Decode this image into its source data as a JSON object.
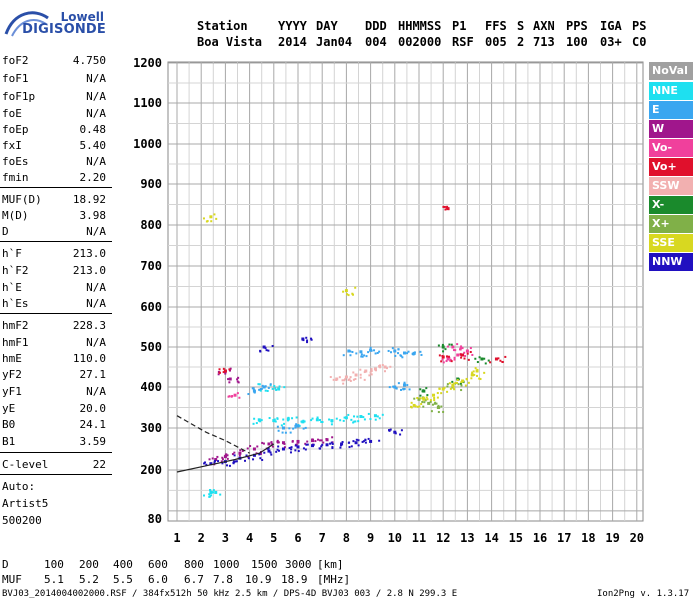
{
  "logo": {
    "line1": "Lowell",
    "line2": "DIGISONDE"
  },
  "header": {
    "labels": [
      "Station",
      "YYYY",
      "DAY",
      "DDD",
      "HHMMSS",
      "P1",
      "FFS",
      "S",
      "AXN",
      "PPS",
      "IGA",
      "PS"
    ],
    "values": [
      "Boa Vista",
      "2014",
      "Jan04",
      "004",
      "002000",
      "RSF",
      "005",
      "2",
      "713",
      "100",
      "03+",
      "C0"
    ]
  },
  "params": [
    {
      "name": "foF2",
      "value": "4.750"
    },
    {
      "name": "foF1",
      "value": "N/A"
    },
    {
      "name": "foF1p",
      "value": "N/A"
    },
    {
      "name": "foE",
      "value": "N/A"
    },
    {
      "name": "foEp",
      "value": "0.48"
    },
    {
      "name": "fxI",
      "value": "5.40"
    },
    {
      "name": "foEs",
      "value": "N/A"
    },
    {
      "name": "fmin",
      "value": "2.20"
    },
    {
      "name": "MUF(D)",
      "value": "18.92"
    },
    {
      "name": "M(D)",
      "value": "3.98"
    },
    {
      "name": "D",
      "value": "N/A"
    },
    {
      "name": "h`F",
      "value": "213.0"
    },
    {
      "name": "h`F2",
      "value": "213.0"
    },
    {
      "name": "h`E",
      "value": "N/A"
    },
    {
      "name": "h`Es",
      "value": "N/A"
    },
    {
      "name": "hmF2",
      "value": "228.3"
    },
    {
      "name": "hmF1",
      "value": "N/A"
    },
    {
      "name": "hmE",
      "value": "110.0"
    },
    {
      "name": "yF2",
      "value": "27.1"
    },
    {
      "name": "yF1",
      "value": "N/A"
    },
    {
      "name": "yE",
      "value": "20.0"
    },
    {
      "name": "B0",
      "value": "24.1"
    },
    {
      "name": "B1",
      "value": "3.59"
    },
    {
      "name": "C-level",
      "value": "22"
    }
  ],
  "auto": {
    "label": "Auto:",
    "artist": "Artist5",
    "code": "500200"
  },
  "legend": [
    {
      "label": "NoVal",
      "color": "#a0a0a0"
    },
    {
      "label": "NNE",
      "color": "#1ee0f0"
    },
    {
      "label": "E",
      "color": "#3aa6f0"
    },
    {
      "label": "W",
      "color": "#a0168c"
    },
    {
      "label": "Vo-",
      "color": "#f0409c"
    },
    {
      "label": "Vo+",
      "color": "#e0102c"
    },
    {
      "label": "SSW",
      "color": "#f2b0b0"
    },
    {
      "label": "X-",
      "color": "#1a8a2c"
    },
    {
      "label": "X+",
      "color": "#80b048"
    },
    {
      "label": "SSE",
      "color": "#d8d820"
    },
    {
      "label": "NNW",
      "color": "#2010c0"
    }
  ],
  "bottom": {
    "d_label": "D",
    "d_values": [
      "100",
      "200",
      "400",
      "600",
      "800",
      "1000",
      "1500",
      "3000",
      "[km]"
    ],
    "muf_label": "MUF",
    "muf_values": [
      "5.1",
      "5.2",
      "5.5",
      "6.0",
      "6.7",
      "7.8",
      "10.9",
      "18.9",
      "[MHz]"
    ]
  },
  "footer": {
    "left": "BVJ03_2014004002000.RSF / 384fx512h 50 kHz 2.5 km / DPS-4D BVJ03 003 / 2.8 N 299.3 E",
    "right": "Ion2Png v. 1.3.17"
  },
  "chart_data": {
    "type": "scatter",
    "title": "",
    "xlabel": "",
    "ylabel": "",
    "x_ticks": [
      1,
      2,
      3,
      4,
      5,
      6,
      7,
      8,
      9,
      10,
      11,
      12,
      13,
      14,
      15,
      16,
      17,
      18,
      19,
      20
    ],
    "y_ticks": [
      80,
      200,
      300,
      400,
      500,
      600,
      700,
      800,
      900,
      1000,
      1100,
      1200
    ],
    "xlim": [
      1,
      20
    ],
    "ylim": [
      80,
      1200
    ],
    "grid": true,
    "legend_position": "right",
    "series": [
      {
        "name": "NNE",
        "points": [
          [
            4.4,
            320
          ],
          [
            5.0,
            318
          ],
          [
            5.6,
            322
          ],
          [
            6.2,
            315
          ],
          [
            6.8,
            320
          ],
          [
            7.4,
            318
          ],
          [
            8.0,
            325
          ],
          [
            8.6,
            328
          ],
          [
            9.2,
            330
          ],
          [
            4.6,
            400
          ],
          [
            5.2,
            395
          ],
          [
            2.4,
            145
          ],
          [
            2.6,
            145
          ]
        ]
      },
      {
        "name": "E",
        "points": [
          [
            8.1,
            490
          ],
          [
            8.6,
            488
          ],
          [
            9.0,
            492
          ],
          [
            10.0,
            490
          ],
          [
            10.4,
            485
          ],
          [
            10.8,
            484
          ],
          [
            4.2,
            390
          ],
          [
            4.6,
            400
          ],
          [
            5.4,
            300
          ],
          [
            6.0,
            305
          ],
          [
            10.0,
            400
          ],
          [
            10.4,
            405
          ]
        ]
      },
      {
        "name": "W",
        "points": [
          [
            2.6,
            225
          ],
          [
            3.0,
            232
          ],
          [
            3.6,
            240
          ],
          [
            4.2,
            250
          ],
          [
            4.8,
            262
          ],
          [
            5.4,
            265
          ],
          [
            6.0,
            268
          ],
          [
            6.6,
            270
          ],
          [
            7.2,
            272
          ],
          [
            3.0,
            440
          ],
          [
            3.2,
            420
          ]
        ]
      },
      {
        "name": "Vo-",
        "points": [
          [
            12.2,
            470
          ],
          [
            12.6,
            480
          ],
          [
            13.0,
            490
          ],
          [
            3.4,
            380
          ],
          [
            12.4,
            500
          ]
        ]
      },
      {
        "name": "Vo+",
        "points": [
          [
            12.0,
            475
          ],
          [
            12.8,
            480
          ],
          [
            14.2,
            470
          ],
          [
            12.2,
            840
          ],
          [
            3.0,
            440
          ]
        ]
      },
      {
        "name": "SSW",
        "points": [
          [
            7.6,
            420
          ],
          [
            8.0,
            425
          ],
          [
            8.4,
            430
          ],
          [
            8.8,
            440
          ],
          [
            9.2,
            445
          ],
          [
            9.6,
            450
          ]
        ]
      },
      {
        "name": "X-",
        "points": [
          [
            11.2,
            390
          ],
          [
            12.0,
            500
          ],
          [
            12.6,
            420
          ],
          [
            13.6,
            470
          ]
        ]
      },
      {
        "name": "X+",
        "points": [
          [
            11.0,
            370
          ],
          [
            11.4,
            360
          ],
          [
            11.8,
            350
          ],
          [
            12.4,
            400
          ]
        ]
      },
      {
        "name": "SSE",
        "points": [
          [
            10.8,
            355
          ],
          [
            11.2,
            370
          ],
          [
            11.6,
            380
          ],
          [
            12.0,
            395
          ],
          [
            12.4,
            405
          ],
          [
            12.8,
            415
          ],
          [
            13.2,
            430
          ],
          [
            13.4,
            440
          ],
          [
            8.0,
            640
          ],
          [
            2.4,
            820
          ]
        ]
      },
      {
        "name": "NNW",
        "points": [
          [
            2.4,
            215
          ],
          [
            3.0,
            220
          ],
          [
            3.6,
            228
          ],
          [
            4.2,
            235
          ],
          [
            4.8,
            245
          ],
          [
            5.4,
            250
          ],
          [
            6.0,
            255
          ],
          [
            6.6,
            258
          ],
          [
            7.2,
            260
          ],
          [
            7.8,
            262
          ],
          [
            8.4,
            265
          ],
          [
            9.0,
            268
          ],
          [
            4.6,
            500
          ],
          [
            6.2,
            520
          ],
          [
            10.0,
            290
          ]
        ]
      }
    ],
    "lines": [
      {
        "style": "solid",
        "points": [
          [
            1,
            195
          ],
          [
            2.2,
            210
          ],
          [
            3.4,
            225
          ],
          [
            4.4,
            240
          ],
          [
            5.0,
            262
          ]
        ]
      },
      {
        "style": "dashed",
        "points": [
          [
            1,
            330
          ],
          [
            2.2,
            290
          ],
          [
            3.0,
            270
          ],
          [
            4.0,
            240
          ]
        ]
      }
    ]
  }
}
